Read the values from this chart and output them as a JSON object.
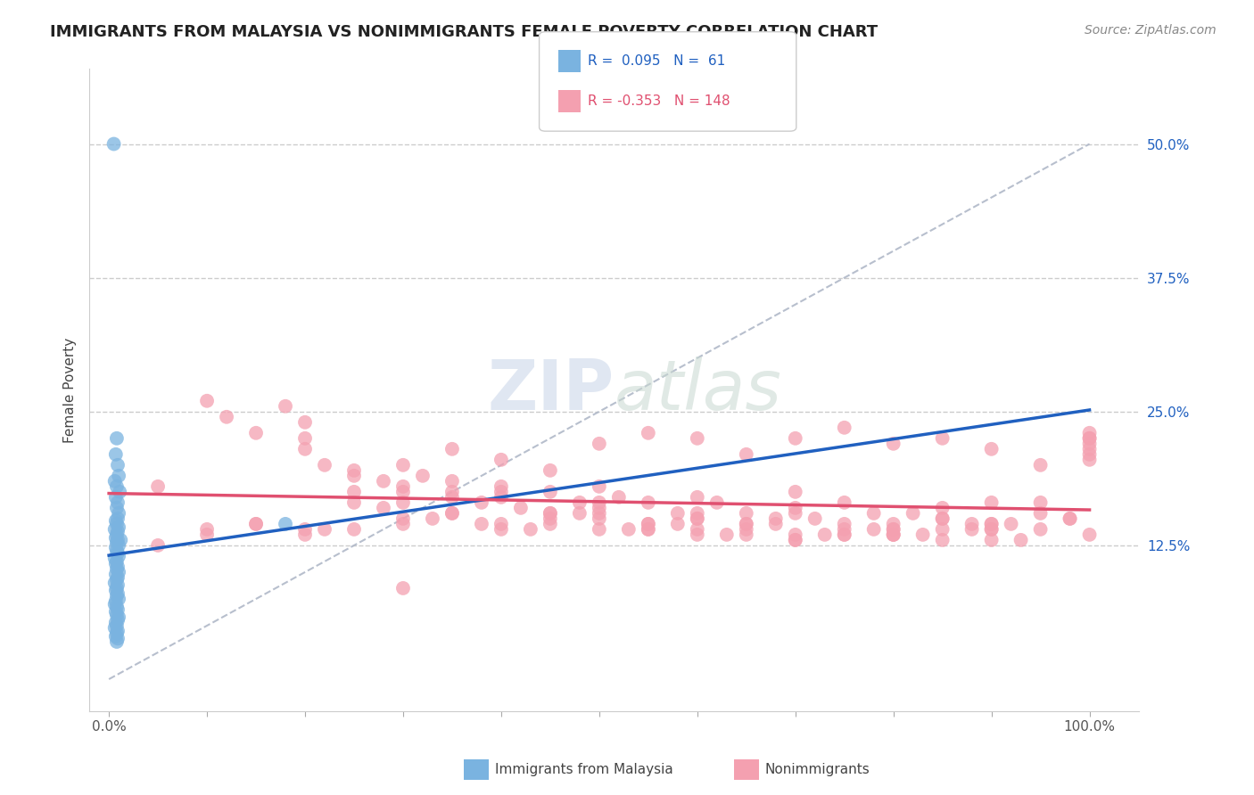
{
  "title": "IMMIGRANTS FROM MALAYSIA VS NONIMMIGRANTS FEMALE POVERTY CORRELATION CHART",
  "source": "Source: ZipAtlas.com",
  "ylabel": "Female Poverty",
  "xlim": [
    -2,
    105
  ],
  "ylim": [
    -3,
    57
  ],
  "yticks": [
    0,
    12.5,
    25.0,
    37.5,
    50.0
  ],
  "ytick_labels": [
    "",
    "12.5%",
    "25.0%",
    "37.5%",
    "50.0%"
  ],
  "xticks": [
    0,
    10,
    20,
    30,
    40,
    50,
    60,
    70,
    80,
    90,
    100
  ],
  "xtick_labels": [
    "0.0%",
    "",
    "",
    "",
    "",
    "",
    "",
    "",
    "",
    "",
    "100.0%"
  ],
  "legend_blue_label": "Immigrants from Malaysia",
  "legend_pink_label": "Nonimmigrants",
  "blue_R": 0.095,
  "blue_N": 61,
  "pink_R": -0.353,
  "pink_N": 148,
  "blue_color": "#7ab3e0",
  "pink_color": "#f4a0b0",
  "blue_line_color": "#2060c0",
  "pink_line_color": "#e05070",
  "watermark": "ZIPatlas",
  "blue_scatter_x": [
    0.5,
    0.8,
    0.7,
    0.9,
    1.0,
    0.6,
    0.8,
    1.1,
    0.7,
    0.9,
    0.8,
    1.0,
    0.9,
    0.7,
    0.8,
    1.0,
    0.6,
    0.9,
    0.8,
    0.7,
    0.9,
    0.8,
    1.0,
    0.7,
    0.8,
    0.9,
    1.0,
    0.6,
    0.8,
    0.7,
    0.9,
    0.8,
    1.0,
    0.7,
    0.9,
    0.8,
    0.6,
    0.9,
    0.8,
    0.7,
    0.9,
    0.8,
    1.0,
    0.7,
    0.6,
    0.8,
    0.9,
    0.7,
    0.8,
    1.0,
    0.9,
    0.7,
    0.8,
    0.6,
    0.9,
    0.8,
    0.7,
    0.9,
    18.0,
    0.8,
    1.2
  ],
  "blue_scatter_y": [
    50.0,
    22.5,
    21.0,
    20.0,
    19.0,
    18.5,
    18.0,
    17.5,
    17.0,
    16.5,
    16.0,
    15.5,
    15.0,
    14.8,
    14.5,
    14.2,
    14.0,
    13.8,
    13.5,
    13.2,
    13.0,
    12.8,
    12.5,
    12.3,
    12.0,
    11.8,
    11.5,
    11.3,
    11.0,
    10.8,
    10.5,
    10.3,
    10.0,
    9.8,
    9.5,
    9.3,
    9.0,
    8.8,
    8.5,
    8.3,
    8.0,
    7.8,
    7.5,
    7.3,
    7.0,
    6.8,
    6.5,
    6.3,
    6.0,
    5.8,
    5.5,
    5.3,
    5.0,
    4.8,
    4.5,
    4.3,
    4.0,
    3.8,
    14.5,
    3.5,
    13.0
  ],
  "pink_scatter_x": [
    5,
    10,
    12,
    15,
    18,
    20,
    22,
    25,
    28,
    30,
    30,
    32,
    35,
    35,
    38,
    40,
    40,
    42,
    45,
    45,
    48,
    50,
    50,
    52,
    55,
    55,
    58,
    60,
    60,
    62,
    65,
    65,
    68,
    70,
    70,
    72,
    75,
    75,
    78,
    80,
    80,
    82,
    85,
    85,
    88,
    90,
    90,
    92,
    95,
    95,
    98,
    100,
    100,
    25,
    30,
    35,
    20,
    45,
    50,
    55,
    60,
    65,
    70,
    75,
    80,
    85,
    90,
    95,
    30,
    40,
    50,
    60,
    70,
    80,
    90,
    25,
    35,
    45,
    55,
    65,
    75,
    85,
    20,
    30,
    40,
    50,
    60,
    70,
    80,
    90,
    100,
    25,
    35,
    45,
    55,
    65,
    75,
    85,
    15,
    10,
    20,
    30,
    40,
    50,
    60,
    70,
    80,
    90,
    100,
    5,
    10,
    15,
    20,
    25,
    30,
    35,
    40,
    45,
    50,
    55,
    60,
    65,
    70,
    75,
    80,
    85,
    90,
    95,
    100,
    22,
    28,
    33,
    38,
    43,
    48,
    53,
    58,
    63,
    68,
    73,
    78,
    83,
    88,
    93,
    98,
    100,
    100,
    100
  ],
  "pink_scatter_y": [
    18.0,
    26.0,
    24.5,
    23.0,
    25.5,
    21.5,
    20.0,
    19.5,
    18.5,
    17.5,
    20.0,
    19.0,
    18.5,
    17.0,
    16.5,
    18.0,
    17.5,
    16.0,
    17.5,
    15.5,
    16.5,
    18.0,
    15.0,
    17.0,
    16.5,
    14.5,
    15.5,
    17.0,
    14.0,
    16.5,
    15.5,
    13.5,
    15.0,
    17.5,
    13.0,
    15.0,
    16.5,
    14.0,
    15.5,
    14.5,
    13.5,
    15.5,
    16.0,
    13.0,
    14.5,
    16.5,
    14.0,
    14.5,
    15.5,
    16.5,
    15.0,
    22.0,
    20.5,
    17.5,
    16.5,
    15.5,
    22.5,
    14.5,
    16.0,
    14.0,
    15.5,
    14.5,
    16.0,
    14.5,
    14.0,
    15.0,
    14.5,
    14.0,
    15.0,
    14.0,
    15.5,
    15.0,
    13.5,
    13.5,
    14.0,
    16.5,
    15.5,
    15.0,
    14.0,
    14.5,
    13.5,
    15.0,
    24.0,
    18.0,
    17.0,
    16.5,
    15.0,
    15.5,
    14.0,
    14.5,
    21.0,
    19.0,
    17.5,
    15.5,
    14.5,
    14.0,
    13.5,
    14.0,
    14.5,
    13.5,
    14.0,
    8.5,
    14.5,
    14.0,
    13.5,
    13.0,
    13.5,
    13.0,
    13.5,
    12.5,
    14.0,
    14.5,
    13.5,
    14.0,
    14.5,
    21.5,
    20.5,
    19.5,
    22.0,
    23.0,
    22.5,
    21.0,
    22.5,
    23.5,
    22.0,
    22.5,
    21.5,
    20.0,
    22.5,
    14.0,
    16.0,
    15.0,
    14.5,
    14.0,
    15.5,
    14.0,
    14.5,
    13.5,
    14.5,
    13.5,
    14.0,
    13.5,
    14.0,
    13.0,
    15.0,
    22.5,
    23.0,
    21.5
  ]
}
